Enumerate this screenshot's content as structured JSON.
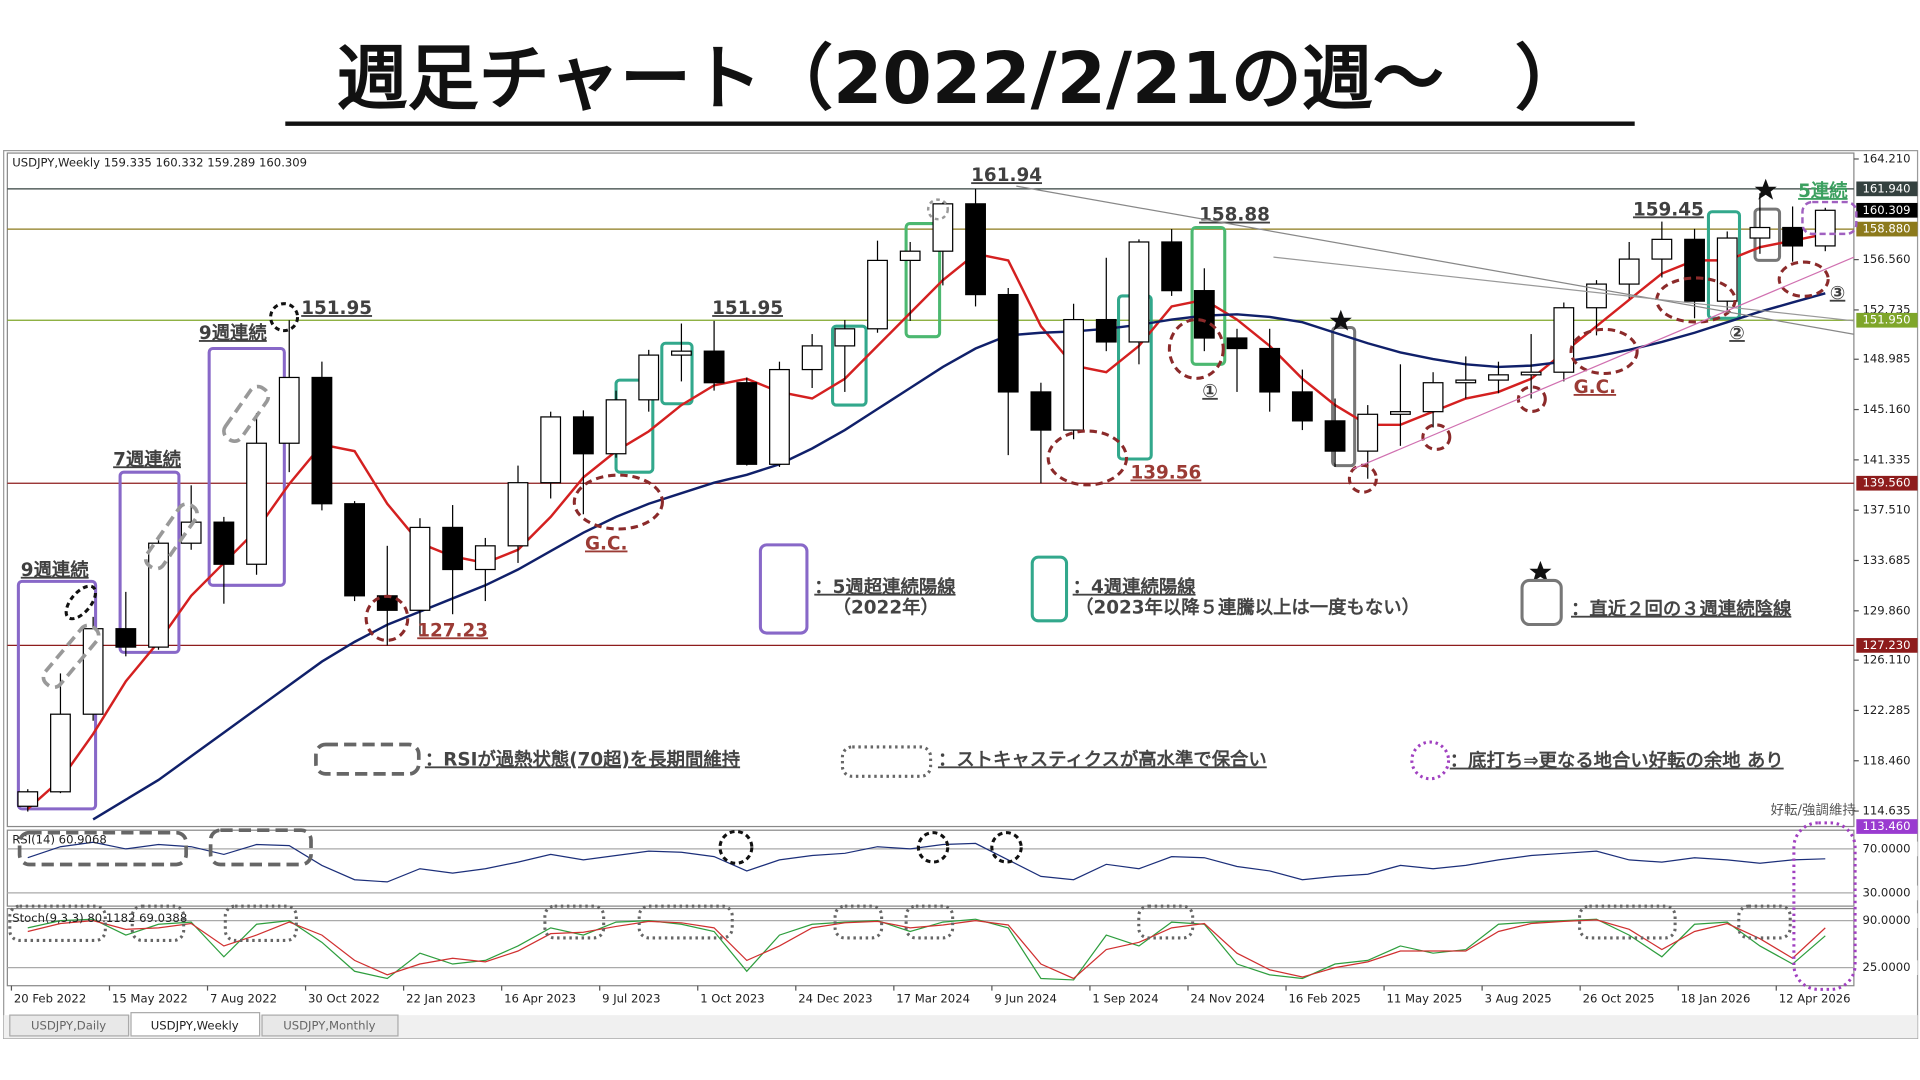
{
  "title": "週足チャート（2022/2/21の週～　）",
  "notes": {
    "five_week": "：5週超連続陽線",
    "five_week_sub": "（2022年）",
    "four_week": "：4週連続陽線",
    "four_week_sub": "（2023年以降５連騰以上は一度もない）",
    "three_week": "：直近２回の３週連続陰線",
    "rsi": "：RSIが過熱状態(70超)を長期間維持",
    "stoch": "：ストキャスティクスが高水準で保合い",
    "bottom": "：底打ち⇒更なる地合い好転の余地 あり",
    "corner": "好転/強調維持"
  },
  "tabs": [
    "USDJPY,Daily",
    "USDJPY,Weekly",
    "USDJPY,Monthly"
  ],
  "chart_data": [
    {
      "type": "candlestick",
      "header": "USDJPY,Weekly  159.335 160.332 159.289 160.309",
      "x": [
        0,
        4,
        8,
        12,
        16,
        20,
        24,
        28,
        32,
        36,
        40,
        44,
        48,
        52,
        56,
        60,
        64,
        68,
        72,
        76,
        80,
        84,
        88,
        92,
        96,
        100,
        104,
        108,
        112,
        116,
        120,
        124,
        128,
        132,
        136,
        140,
        144,
        148,
        152,
        156,
        160,
        164,
        168,
        172,
        176,
        180,
        184,
        188,
        192,
        196,
        200,
        204,
        208,
        212,
        216,
        220
      ],
      "open": [
        115.0,
        116.1,
        122.0,
        128.5,
        127.1,
        135.0,
        136.6,
        133.4,
        142.6,
        147.6,
        138.0,
        131.0,
        129.9,
        136.2,
        133.0,
        134.8,
        139.6,
        144.6,
        141.8,
        145.9,
        149.3,
        149.6,
        147.2,
        141.0,
        148.2,
        150.0,
        151.3,
        156.5,
        157.2,
        160.8,
        153.9,
        146.5,
        143.6,
        152.0,
        150.3,
        157.9,
        154.2,
        150.6,
        149.8,
        146.5,
        144.3,
        142.0,
        144.8,
        145.0,
        147.2,
        147.4,
        147.8,
        148.0,
        152.9,
        154.7,
        156.6,
        158.1,
        153.4,
        158.2,
        159.0,
        157.6
      ],
      "high": [
        116.3,
        125.1,
        129.4,
        131.3,
        135.6,
        139.4,
        137.0,
        144.9,
        151.95,
        148.8,
        138.2,
        134.8,
        136.9,
        137.9,
        135.4,
        140.9,
        145.0,
        145.1,
        146.6,
        149.7,
        151.7,
        151.9,
        147.6,
        148.8,
        150.9,
        151.97,
        158.0,
        157.9,
        160.9,
        161.94,
        154.4,
        147.2,
        153.2,
        156.7,
        158.1,
        158.88,
        155.9,
        151.3,
        151.3,
        148.2,
        146.0,
        145.5,
        148.6,
        148.0,
        149.2,
        148.8,
        150.9,
        153.3,
        155.0,
        157.9,
        159.45,
        158.9,
        158.7,
        161.6,
        160.6,
        160.5
      ],
      "low": [
        114.6,
        116.0,
        121.5,
        126.4,
        126.9,
        134.5,
        130.4,
        132.6,
        140.4,
        137.5,
        130.6,
        127.23,
        128.0,
        129.6,
        130.6,
        133.5,
        138.4,
        137.2,
        141.5,
        145.0,
        147.3,
        146.6,
        140.9,
        140.8,
        146.8,
        146.5,
        151.0,
        151.9,
        154.6,
        153.0,
        141.7,
        139.56,
        142.9,
        149.6,
        148.6,
        153.8,
        149.6,
        146.5,
        145.0,
        143.6,
        140.8,
        139.9,
        142.4,
        143.8,
        146.0,
        146.4,
        146.0,
        147.3,
        150.8,
        153.6,
        155.2,
        152.1,
        152.6,
        157.0,
        156.4,
        157.2
      ],
      "close": [
        116.1,
        122.0,
        128.5,
        127.1,
        135.0,
        136.6,
        133.4,
        142.6,
        147.6,
        138.0,
        131.0,
        129.9,
        136.2,
        133.0,
        134.8,
        139.6,
        144.6,
        141.8,
        145.9,
        149.3,
        149.6,
        147.2,
        141.0,
        148.2,
        150.0,
        151.3,
        156.5,
        157.2,
        160.8,
        153.9,
        146.5,
        143.6,
        152.0,
        150.3,
        157.9,
        154.2,
        150.6,
        149.8,
        146.5,
        144.3,
        142.0,
        144.8,
        145.0,
        147.2,
        147.4,
        147.8,
        148.0,
        152.9,
        154.7,
        156.6,
        158.1,
        153.4,
        158.2,
        159.0,
        157.6,
        160.309
      ],
      "overlays": [
        {
          "color": "#d42020",
          "values": [
            114.8,
            117.0,
            120.5,
            124.5,
            127.5,
            131.0,
            133.5,
            136.0,
            139.5,
            142.5,
            142.0,
            138.0,
            135.0,
            134.0,
            133.5,
            134.5,
            137.0,
            140.0,
            142.0,
            143.5,
            145.5,
            147.0,
            147.5,
            146.5,
            146.0,
            147.5,
            150.0,
            152.5,
            155.0,
            157.0,
            156.5,
            151.5,
            148.5,
            148.0,
            150.0,
            153.0,
            153.5,
            152.0,
            150.0,
            147.5,
            145.5,
            144.0,
            144.0,
            145.0,
            146.0,
            146.5,
            147.5,
            149.5,
            151.5,
            153.5,
            155.5,
            156.5,
            156.5,
            157.5,
            158.0,
            158.5
          ]
        },
        {
          "color": "#10206a",
          "values": [
            null,
            null,
            114.0,
            115.5,
            117.0,
            118.8,
            120.6,
            122.4,
            124.2,
            126.0,
            127.5,
            128.8,
            129.8,
            130.8,
            131.8,
            133.0,
            134.4,
            135.8,
            137.0,
            138.0,
            138.8,
            139.6,
            140.2,
            141.0,
            142.2,
            143.6,
            145.2,
            146.8,
            148.4,
            149.8,
            150.8,
            151.0,
            151.1,
            151.3,
            151.6,
            152.0,
            152.3,
            152.4,
            152.2,
            151.8,
            151.0,
            150.2,
            149.5,
            149.0,
            148.6,
            148.4,
            148.5,
            148.8,
            149.2,
            149.7,
            150.3,
            151.0,
            151.8,
            152.6,
            153.3,
            154.0
          ]
        }
      ],
      "xlim": [
        -0.5,
        225.5
      ],
      "ylim": [
        113.46,
        164.66
      ],
      "xticks": [
        {
          "value": 0,
          "label": "20 Feb 2022"
        },
        {
          "value": 12,
          "label": "15 May 2022"
        },
        {
          "value": 24,
          "label": "7 Aug 2022"
        },
        {
          "value": 36,
          "label": "30 Oct 2022"
        },
        {
          "value": 48,
          "label": "22 Jan 2023"
        },
        {
          "value": 60,
          "label": "16 Apr 2023"
        },
        {
          "value": 72,
          "label": "9 Jul 2023"
        },
        {
          "value": 84,
          "label": "1 Oct 2023"
        },
        {
          "value": 96,
          "label": "24 Dec 2023"
        },
        {
          "value": 108,
          "label": "17 Mar 2024"
        },
        {
          "value": 120,
          "label": "9 Jun 2024"
        },
        {
          "value": 132,
          "label": "1 Sep 2024"
        },
        {
          "value": 144,
          "label": "24 Nov 2024"
        },
        {
          "value": 156,
          "label": "16 Feb 2025"
        },
        {
          "value": 168,
          "label": "11 May 2025"
        },
        {
          "value": 180,
          "label": "3 Aug 2025"
        },
        {
          "value": 192,
          "label": "26 Oct 2025"
        },
        {
          "value": 204,
          "label": "18 Jan 2026"
        },
        {
          "value": 216,
          "label": "12 Apr 2026"
        }
      ],
      "yticks": [
        {
          "value": 164.21,
          "label": "164.210"
        },
        {
          "value": 156.56,
          "label": "156.560"
        },
        {
          "value": 152.735,
          "label": "152.735"
        },
        {
          "value": 148.985,
          "label": "148.985"
        },
        {
          "value": 145.16,
          "label": "145.160"
        },
        {
          "value": 141.335,
          "label": "141.335"
        },
        {
          "value": 137.51,
          "label": "137.510"
        },
        {
          "value": 133.685,
          "label": "133.685"
        },
        {
          "value": 129.86,
          "label": "129.860"
        },
        {
          "value": 126.11,
          "label": "126.110"
        },
        {
          "value": 122.285,
          "label": "122.285"
        },
        {
          "value": 118.46,
          "label": "118.460"
        },
        {
          "value": 114.635,
          "label": "114.635"
        }
      ],
      "levels": [
        {
          "value": 161.94,
          "label": "161.940",
          "color": "#34413f",
          "line": true
        },
        {
          "value": 160.309,
          "label": "160.309",
          "color": "#000000",
          "line": false
        },
        {
          "value": 158.88,
          "label": "158.880",
          "color": "#8c7a1c",
          "line": true
        },
        {
          "value": 151.95,
          "label": "151.950",
          "color": "#7fa62a",
          "line": true
        },
        {
          "value": 139.56,
          "label": "139.560",
          "color": "#8e1c1c",
          "line": true
        },
        {
          "value": 127.23,
          "label": "127.230",
          "color": "#8e1c1c",
          "line": true
        },
        {
          "value": 113.46,
          "label": "113.460",
          "color": "#9a3bd0",
          "line": false
        }
      ],
      "boxes": [
        {
          "x": [
            0.85,
            10.3
          ],
          "y": [
            114.8,
            132.1
          ],
          "color": "#8868c8"
        },
        {
          "x": [
            13.3,
            20.5
          ],
          "y": [
            126.7,
            140.4
          ],
          "color": "#8868c8"
        },
        {
          "x": [
            24.2,
            33.4
          ],
          "y": [
            131.8,
            149.8
          ],
          "color": "#8868c8"
        },
        {
          "x": [
            74.0,
            78.5
          ],
          "y": [
            140.4,
            147.4
          ],
          "color": "#32a88c"
        },
        {
          "x": [
            79.6,
            83.3
          ],
          "y": [
            145.6,
            150.2
          ],
          "color": "#32a88c"
        },
        {
          "x": [
            100.5,
            104.6
          ],
          "y": [
            145.5,
            151.5
          ],
          "color": "#32a88c"
        },
        {
          "x": [
            109.5,
            113.6
          ],
          "y": [
            150.7,
            159.3
          ],
          "color": "#4cb870"
        },
        {
          "x": [
            135.5,
            139.5
          ],
          "y": [
            141.4,
            153.8
          ],
          "color": "#32a88c"
        },
        {
          "x": [
            144.5,
            148.5
          ],
          "y": [
            148.6,
            159.0
          ],
          "color": "#4cb870"
        },
        {
          "x": [
            207.7,
            211.5
          ],
          "y": [
            152.1,
            160.2
          ],
          "color": "#32a88c"
        },
        {
          "x": [
            161.7,
            164.4
          ],
          "y": [
            140.9,
            151.4
          ],
          "color": "#777777"
        },
        {
          "x": [
            213.4,
            216.4
          ],
          "y": [
            156.5,
            160.4
          ],
          "color": "#777777"
        }
      ],
      "annotations": [
        {
          "text": "9週連続",
          "x": 5.3,
          "y": 132.9,
          "color": "#404040"
        },
        {
          "text": "7週連続",
          "x": 16.6,
          "y": 141.3,
          "color": "#404040"
        },
        {
          "text": "9週連続",
          "x": 27.1,
          "y": 150.9,
          "color": "#404040"
        },
        {
          "text": "151.95",
          "x": 39.8,
          "y": 152.8,
          "color": "#404040"
        },
        {
          "text": "127.23",
          "x": 54.0,
          "y": 128.3,
          "color": "#9b3b35"
        },
        {
          "text": "G.C.",
          "x": 72.8,
          "y": 134.9,
          "color": "#9b3b35"
        },
        {
          "text": "151.95",
          "x": 90.1,
          "y": 152.8,
          "color": "#404040"
        },
        {
          "text": "161.94",
          "x": 121.8,
          "y": 162.9,
          "color": "#404040"
        },
        {
          "text": "139.56",
          "x": 141.3,
          "y": 140.3,
          "color": "#9b3b35"
        },
        {
          "text": "158.88",
          "x": 149.7,
          "y": 159.9,
          "color": "#404040"
        },
        {
          "text": "①",
          "x": 146.7,
          "y": 146.5,
          "color": "#404040"
        },
        {
          "text": "159.45",
          "x": 202.8,
          "y": 160.3,
          "color": "#404040"
        },
        {
          "text": "G.C.",
          "x": 193.8,
          "y": 146.8,
          "color": "#9b3b35"
        },
        {
          "text": "②",
          "x": 211.2,
          "y": 150.9,
          "color": "#404040"
        },
        {
          "text": "③",
          "x": 223.5,
          "y": 153.96,
          "color": "#404040"
        },
        {
          "text": "5連続",
          "x": 221.7,
          "y": 161.7,
          "color": "#3ca060"
        }
      ]
    },
    {
      "type": "line",
      "header": "RSI(14) 60.9068",
      "x": [
        0,
        4,
        8,
        12,
        16,
        20,
        24,
        28,
        32,
        36,
        40,
        44,
        48,
        52,
        56,
        60,
        64,
        68,
        72,
        76,
        80,
        84,
        88,
        92,
        96,
        100,
        104,
        108,
        112,
        116,
        120,
        124,
        128,
        132,
        136,
        140,
        144,
        148,
        152,
        156,
        160,
        164,
        168,
        172,
        176,
        180,
        184,
        188,
        192,
        196,
        200,
        204,
        208,
        212,
        216,
        220
      ],
      "series": [
        {
          "color": "#1c2f7a",
          "values": [
            62,
            72,
            76,
            70,
            74,
            72,
            65,
            74,
            73,
            55,
            42,
            40,
            52,
            48,
            52,
            58,
            65,
            60,
            64,
            68,
            67,
            63,
            50,
            60,
            64,
            66,
            72,
            70,
            74,
            75,
            60,
            45,
            42,
            56,
            52,
            63,
            62,
            54,
            50,
            42,
            45,
            47,
            55,
            52,
            55,
            60,
            64,
            66,
            68,
            60,
            58,
            62,
            60,
            57,
            60,
            61
          ]
        }
      ],
      "xlim": [
        -0.5,
        225.5
      ],
      "ylim": [
        18,
        87
      ],
      "yticks": [
        {
          "value": 70,
          "label": "70.0000"
        },
        {
          "value": 30,
          "label": "30.0000"
        }
      ]
    },
    {
      "type": "line",
      "header": "Stoch(9,3,3) 80.1182 69.0388",
      "x": [
        0,
        4,
        8,
        12,
        16,
        20,
        24,
        28,
        32,
        36,
        40,
        44,
        48,
        52,
        56,
        60,
        64,
        68,
        72,
        76,
        80,
        84,
        88,
        92,
        96,
        100,
        104,
        108,
        112,
        116,
        120,
        124,
        128,
        132,
        136,
        140,
        144,
        148,
        152,
        156,
        160,
        164,
        168,
        172,
        176,
        180,
        184,
        188,
        192,
        196,
        200,
        204,
        208,
        212,
        216,
        220
      ],
      "series": [
        {
          "color": "#2e9e3e",
          "values": [
            80,
            90,
            92,
            70,
            85,
            88,
            40,
            85,
            90,
            60,
            20,
            10,
            45,
            30,
            35,
            55,
            80,
            70,
            88,
            90,
            85,
            75,
            20,
            70,
            85,
            88,
            90,
            75,
            88,
            92,
            80,
            10,
            8,
            70,
            55,
            88,
            85,
            30,
            15,
            10,
            30,
            35,
            55,
            45,
            50,
            85,
            88,
            90,
            92,
            70,
            40,
            85,
            88,
            55,
            30,
            69
          ]
        },
        {
          "color": "#d03030",
          "values": [
            75,
            86,
            90,
            78,
            80,
            86,
            55,
            70,
            88,
            70,
            35,
            15,
            30,
            38,
            33,
            48,
            72,
            74,
            82,
            89,
            87,
            80,
            35,
            55,
            80,
            87,
            89,
            80,
            84,
            90,
            84,
            30,
            10,
            50,
            60,
            80,
            86,
            45,
            22,
            12,
            25,
            33,
            48,
            48,
            48,
            75,
            86,
            89,
            91,
            78,
            50,
            75,
            86,
            65,
            38,
            80
          ]
        }
      ],
      "xlim": [
        -0.5,
        225.5
      ],
      "ylim": [
        0,
        106.7
      ],
      "yticks": [
        {
          "value": 90,
          "label": "90.0000"
        },
        {
          "value": 25,
          "label": "25.0000"
        }
      ]
    }
  ]
}
